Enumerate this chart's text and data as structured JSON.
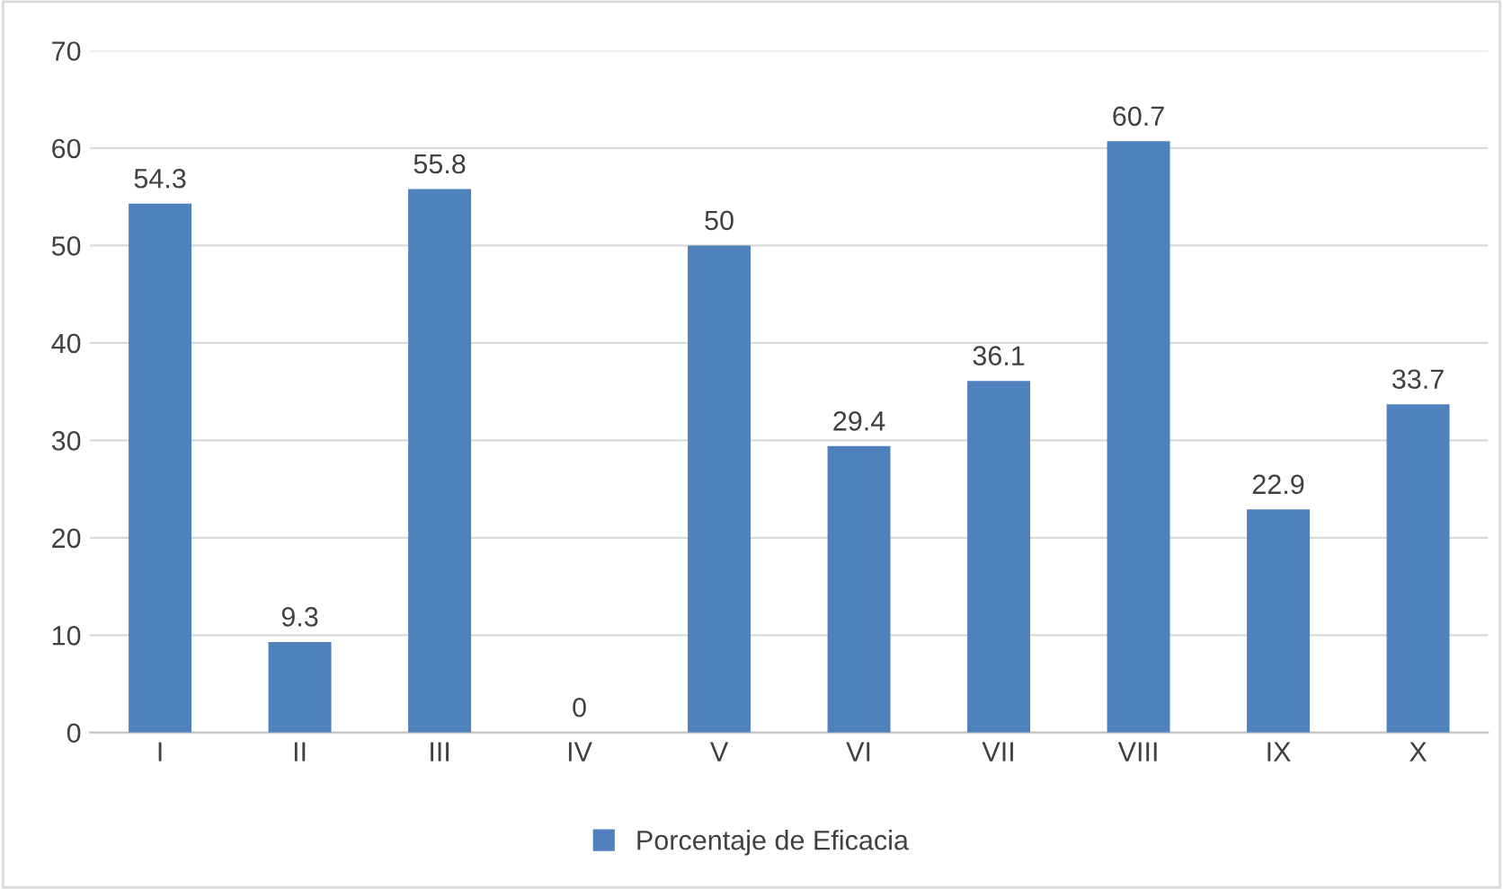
{
  "chart_data": {
    "type": "bar",
    "categories": [
      "I",
      "II",
      "III",
      "IV",
      "V",
      "VI",
      "VII",
      "VIII",
      "IX",
      "X"
    ],
    "series": [
      {
        "name": "Porcentaje de Eficacia",
        "color": "#4f81bd",
        "values": [
          54.3,
          9.3,
          55.8,
          0,
          50,
          29.4,
          36.1,
          60.7,
          22.9,
          33.7
        ]
      }
    ],
    "ylim": [
      0,
      70
    ],
    "yticks": [
      0,
      10,
      20,
      30,
      40,
      50,
      60,
      70
    ],
    "grid": "y",
    "legend": "bottom",
    "data_labels": true
  }
}
